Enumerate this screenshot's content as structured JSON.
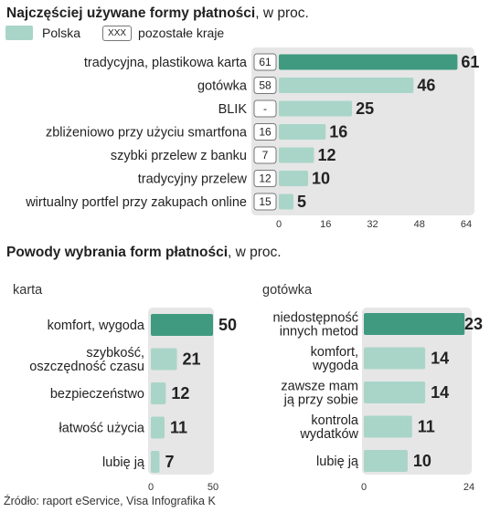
{
  "chart_data": [
    {
      "type": "bar",
      "title": "Najczęściej używane formy płatności",
      "unit": ", w proc.",
      "legend": {
        "primary": "Polska",
        "secondary_box": "XXX",
        "secondary": "pozostałe kraje"
      },
      "categories": [
        "tradycyjna, plastikowa karta",
        "gotówka",
        "BLIK",
        "zbliżeniowo przy użyciu smartfona",
        "szybki przelew z banku",
        "tradycyjny przelew",
        "wirtualny portfel przy zakupach online"
      ],
      "series": [
        {
          "name": "Polska",
          "values": [
            61,
            46,
            25,
            16,
            12,
            10,
            5
          ]
        },
        {
          "name": "pozostałe kraje",
          "values": [
            "61",
            "58",
            "-",
            "16",
            "7",
            "12",
            "15"
          ]
        }
      ],
      "xlim": [
        0,
        64
      ],
      "xticks": [
        0,
        16,
        32,
        48,
        64
      ],
      "highlight_index": 0
    },
    {
      "type": "bar",
      "title": "Powody wybrania form płatności",
      "unit": ", w proc.",
      "subtitle": "karta",
      "categories": [
        [
          "komfort, wygoda"
        ],
        [
          "szybkość,",
          "oszczędność czasu"
        ],
        [
          "bezpieczeństwo"
        ],
        [
          "łatwość użycia"
        ],
        [
          "lubię ją"
        ]
      ],
      "values": [
        50,
        21,
        12,
        11,
        7
      ],
      "xlim": [
        0,
        50
      ],
      "xticks": [
        0,
        50
      ],
      "highlight_index": 0
    },
    {
      "type": "bar",
      "subtitle": "gotówka",
      "categories": [
        [
          "niedostępność",
          "innych metod"
        ],
        [
          "komfort,",
          "wygoda"
        ],
        [
          "zawsze mam",
          "ją przy sobie"
        ],
        [
          "kontrola",
          "wydatków"
        ],
        [
          "lubię ją"
        ]
      ],
      "values": [
        23,
        14,
        14,
        11,
        10
      ],
      "xlim": [
        0,
        24
      ],
      "xticks": [
        0,
        24
      ],
      "highlight_index": 0
    }
  ],
  "source": "Źródło: raport eService, Visa  Infografika K",
  "colors": {
    "highlight": "#3f9a80",
    "bar": "#a9d5c8",
    "panel": "#e6e6e6"
  }
}
